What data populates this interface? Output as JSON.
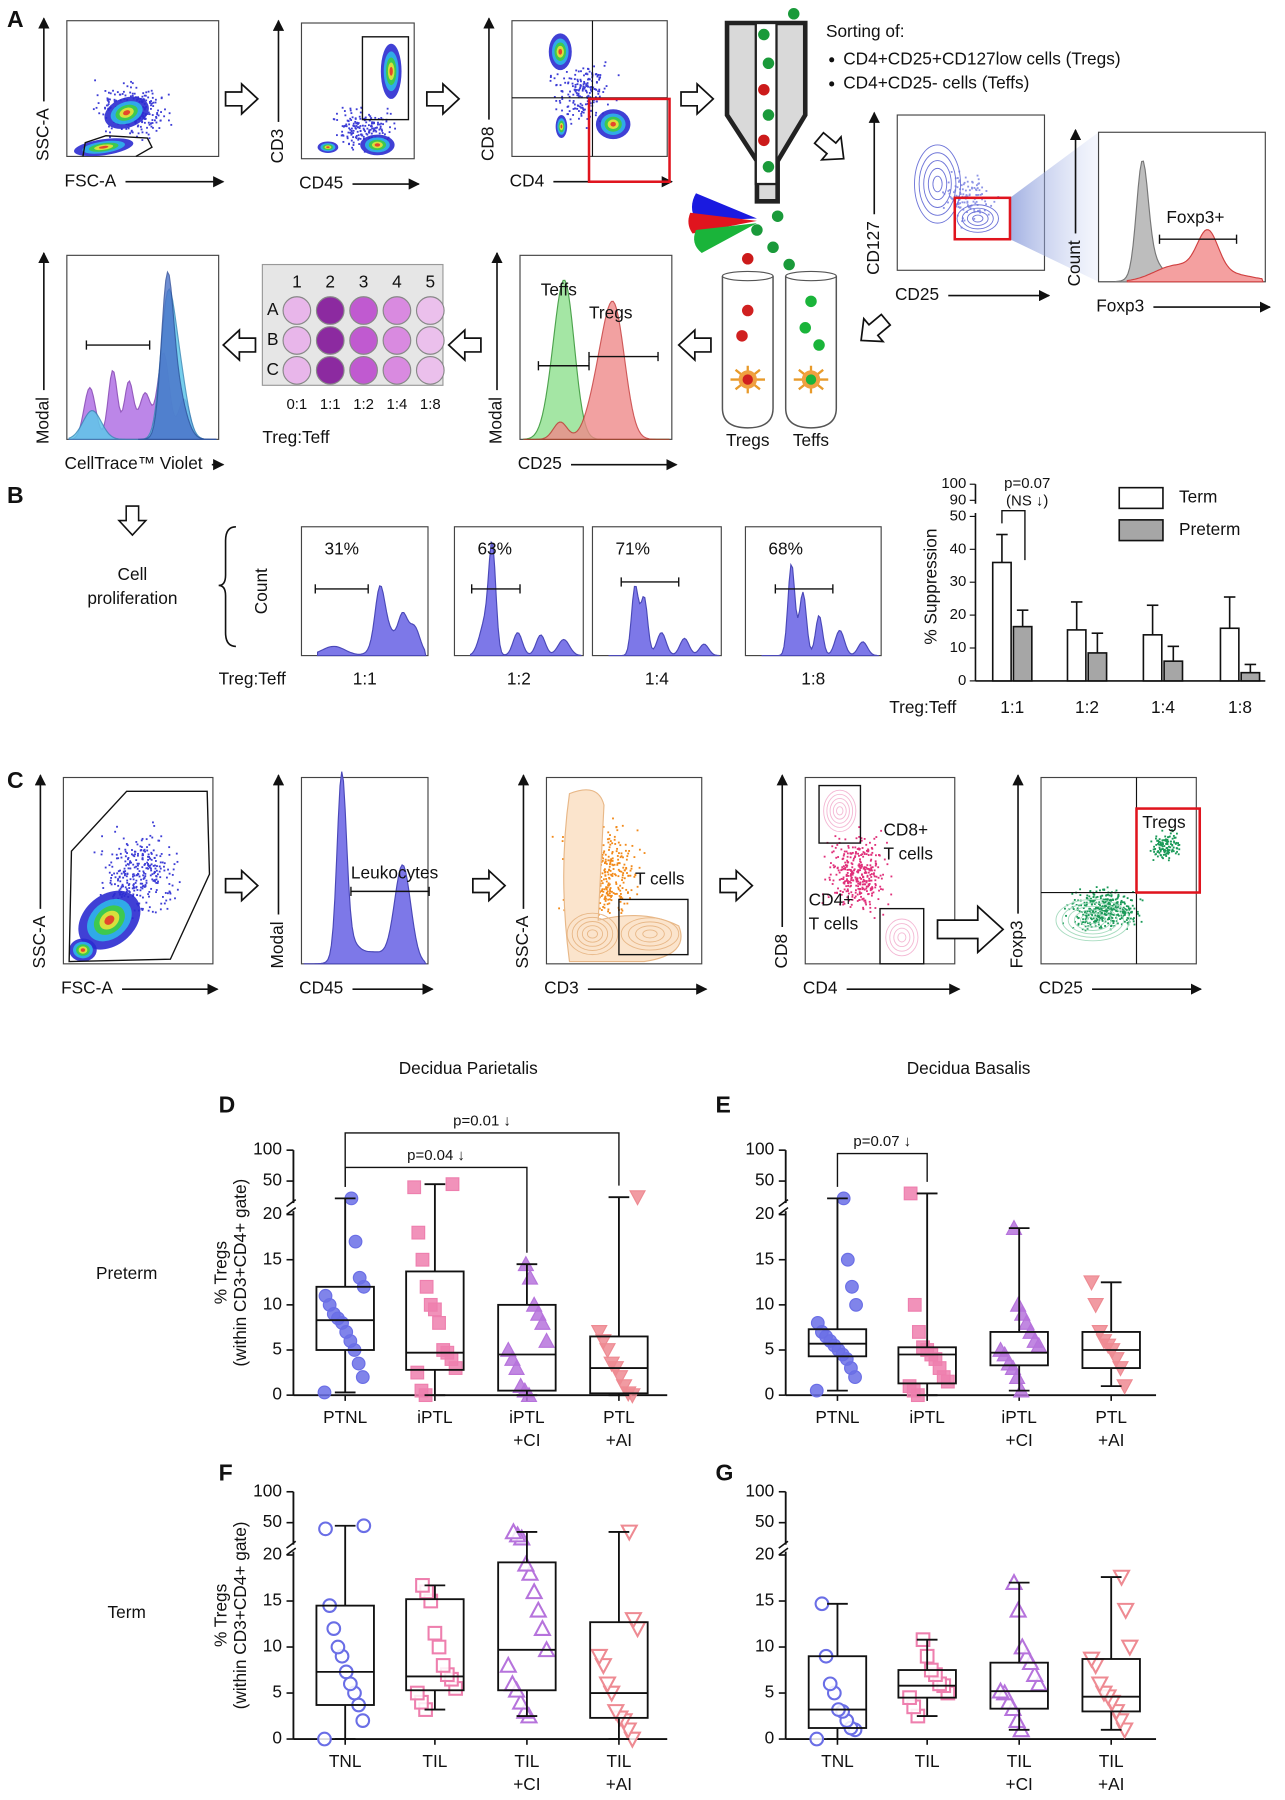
{
  "panels": {
    "a": "A",
    "b": "B",
    "c": "C",
    "d": "D",
    "e": "E",
    "f": "F",
    "g": "G"
  },
  "panel_a": {
    "gating": [
      {
        "x_label": "FSC-A",
        "y_label": "SSC-A"
      },
      {
        "x_label": "CD45",
        "y_label": "CD3"
      },
      {
        "x_label": "CD4",
        "y_label": "CD8"
      }
    ],
    "sorting_title": "Sorting of:",
    "sorting_items": [
      "CD4+CD25+CD127low cells (Tregs)",
      "CD4+CD25- cells (Teffs)"
    ],
    "purity": [
      {
        "x_label": "CD25",
        "y_label": "CD127"
      },
      {
        "x_label": "Foxp3",
        "y_label": "Count",
        "gate": "Foxp3+"
      }
    ],
    "tubes": [
      "Tregs",
      "Teffs"
    ],
    "cd25_histogram": {
      "x_label": "CD25",
      "y_label": "Modal",
      "populations": [
        "Teffs",
        "Tregs"
      ]
    },
    "plate": {
      "columns": [
        "1",
        "2",
        "3",
        "4",
        "5"
      ],
      "rows": [
        "A",
        "B",
        "C"
      ],
      "ratios": [
        "0:1",
        "1:1",
        "1:2",
        "1:4",
        "1:8"
      ],
      "label": "Treg:Teff"
    },
    "ctv_histogram": {
      "x_label": "CellTrace™ Violet",
      "y_label": "Modal"
    }
  },
  "panel_b": {
    "label": "Cell proliferation",
    "y_label": "Count",
    "ratio_label": "Treg:Teff",
    "histograms": [
      {
        "ratio": "1:1",
        "percent": "31%"
      },
      {
        "ratio": "1:2",
        "percent": "63%"
      },
      {
        "ratio": "1:4",
        "percent": "71%"
      },
      {
        "ratio": "1:8",
        "percent": "68%"
      }
    ]
  },
  "panel_c": {
    "plots": [
      {
        "x_label": "FSC-A",
        "y_label": "SSC-A"
      },
      {
        "x_label": "CD45",
        "y_label": "Modal",
        "gate": "Leukocytes"
      },
      {
        "x_label": "CD3",
        "y_label": "SSC-A",
        "gate": "T cells"
      },
      {
        "x_label": "CD4",
        "y_label": "CD8",
        "gates": [
          "CD8+ T cells",
          "CD4+ T cells"
        ]
      },
      {
        "x_label": "CD25",
        "y_label": "Foxp3",
        "gate": "Tregs"
      }
    ]
  },
  "column_titles": [
    "Decidua Parietalis",
    "Decidua Basalis"
  ],
  "row_labels": [
    "Preterm",
    "Term"
  ],
  "chart_data": [
    {
      "type": "bar",
      "y_label": "% Suppression",
      "x_label": "Treg:Teff",
      "categories": [
        "1:1",
        "1:2",
        "1:4",
        "1:8"
      ],
      "series": [
        {
          "name": "Term",
          "color": "#ffffff",
          "values": [
            36,
            15.5,
            14,
            16
          ],
          "errors": [
            8.5,
            8.5,
            9,
            9.5
          ]
        },
        {
          "name": "Preterm",
          "color": "#a6a6a6",
          "values": [
            16.5,
            8.5,
            6,
            2.5
          ],
          "errors": [
            5,
            6,
            4.5,
            2.5
          ]
        }
      ],
      "ylim": [
        0,
        50
      ],
      "yticks": [
        0,
        10,
        20,
        30,
        40,
        50
      ],
      "ylim_upper": [
        90,
        100
      ],
      "yticks_upper": [
        90,
        100
      ],
      "annotations": [
        "p=0.07",
        "(NS ↓)"
      ]
    },
    {
      "type": "box",
      "y_label": [
        "% Tregs",
        "(within CD3+CD4+ gate)"
      ],
      "categories": [
        "PTNL",
        "iPTL",
        "iPTL +CI",
        "PTL +AI"
      ],
      "colors": [
        "#6a6ee6",
        "#ee7fae",
        "#b673dc",
        "#ee8a92"
      ],
      "markers": [
        "circle",
        "square",
        "triangle",
        "triangle-down"
      ],
      "filled": true,
      "boxes": [
        {
          "whislo": 0.3,
          "q1": 5,
          "med": 8.3,
          "q3": 12,
          "whishi": 22,
          "points": [
            0.3,
            2,
            3.5,
            5,
            6,
            7,
            8,
            8.5,
            9,
            10,
            11,
            12,
            13,
            17,
            22
          ]
        },
        {
          "whislo": 0,
          "q1": 2.8,
          "med": 4.7,
          "q3": 13.7,
          "whishi": 45,
          "points": [
            0,
            0.5,
            2.5,
            3,
            4,
            4.7,
            5,
            8,
            9.5,
            10,
            12,
            15,
            18,
            40,
            45
          ]
        },
        {
          "whislo": 0,
          "q1": 0.5,
          "med": 4.5,
          "q3": 10,
          "whishi": 14.5,
          "points": [
            0,
            0.5,
            1,
            3,
            4,
            5,
            6,
            8,
            9,
            10,
            13,
            14.5
          ]
        },
        {
          "whislo": 0,
          "q1": 0.2,
          "med": 3,
          "q3": 6.5,
          "whishi": 24,
          "points": [
            0,
            0.2,
            1,
            2,
            3,
            3.5,
            5,
            6,
            7,
            24
          ]
        }
      ],
      "ylim": [
        0,
        20
      ],
      "yticks": [
        0,
        5,
        10,
        15,
        20
      ],
      "ylim_upper": [
        20,
        100
      ],
      "yticks_upper": [
        50,
        100
      ],
      "annotations": [
        "p=0.04 ↓",
        "p=0.01 ↓"
      ]
    },
    {
      "type": "box",
      "categories": [
        "PTNL",
        "iPTL",
        "iPTL +CI",
        "PTL +AI"
      ],
      "colors": [
        "#6a6ee6",
        "#ee7fae",
        "#b673dc",
        "#ee8a92"
      ],
      "markers": [
        "circle",
        "square",
        "triangle",
        "triangle-down"
      ],
      "filled": true,
      "boxes": [
        {
          "whislo": 0.5,
          "q1": 4.3,
          "med": 5.7,
          "q3": 7.3,
          "whishi": 22,
          "points": [
            0.5,
            2,
            3,
            4,
            4.5,
            5,
            5.5,
            6,
            6.5,
            7,
            8,
            10,
            12,
            15,
            22
          ]
        },
        {
          "whislo": 0,
          "q1": 1.3,
          "med": 4.5,
          "q3": 5.3,
          "whishi": 30,
          "points": [
            0,
            0.5,
            1,
            1.5,
            2,
            3,
            4,
            4.5,
            5,
            5.3,
            7,
            10,
            30
          ]
        },
        {
          "whislo": 0.5,
          "q1": 3.3,
          "med": 4.7,
          "q3": 7,
          "whishi": 18.5,
          "points": [
            0.5,
            2,
            3,
            3.5,
            4.5,
            5,
            5.5,
            6,
            7,
            8,
            9,
            10,
            18.5
          ]
        },
        {
          "whislo": 1,
          "q1": 3,
          "med": 5,
          "q3": 7,
          "whishi": 12.5,
          "points": [
            1,
            3,
            4,
            5,
            5.5,
            6,
            7,
            10,
            12.5
          ]
        }
      ],
      "ylim": [
        0,
        20
      ],
      "yticks": [
        0,
        5,
        10,
        15,
        20
      ],
      "ylim_upper": [
        20,
        100
      ],
      "yticks_upper": [
        50,
        100
      ],
      "annotations": [
        "p=0.07 ↓"
      ]
    },
    {
      "type": "box",
      "y_label": [
        "% Tregs",
        "(within CD3+CD4+ gate)"
      ],
      "categories": [
        "TNL",
        "TIL",
        "TIL +CI",
        "TIL +AI"
      ],
      "colors": [
        "#6a6ee6",
        "#ee7fae",
        "#b673dc",
        "#ee8a92"
      ],
      "markers": [
        "circle",
        "square",
        "triangle",
        "triangle-down"
      ],
      "filled": false,
      "boxes": [
        {
          "whislo": 0,
          "q1": 3.7,
          "med": 7.3,
          "q3": 14.5,
          "whishi": 45,
          "points": [
            0,
            2,
            3.7,
            5,
            6,
            7.3,
            9,
            10,
            12,
            14.5,
            40,
            45
          ]
        },
        {
          "whislo": 3.2,
          "q1": 5.3,
          "med": 6.8,
          "q3": 15.2,
          "whishi": 16.7,
          "points": [
            3.2,
            4,
            5,
            5.5,
            6.5,
            7,
            8,
            10,
            11.5,
            15,
            16,
            16.7
          ]
        },
        {
          "whislo": 2.5,
          "q1": 5.3,
          "med": 9.7,
          "q3": 19.2,
          "whishi": 35,
          "points": [
            2.5,
            3,
            4,
            5.3,
            6,
            8,
            9.7,
            12,
            14,
            16,
            18,
            19,
            25,
            30,
            35
          ]
        },
        {
          "whislo": 0,
          "q1": 2.3,
          "med": 5,
          "q3": 12.7,
          "whishi": 35,
          "points": [
            0,
            1,
            2,
            2.3,
            3,
            5,
            6,
            8,
            9,
            12,
            13,
            35
          ]
        }
      ],
      "ylim": [
        0,
        20
      ],
      "yticks": [
        0,
        5,
        10,
        15,
        20
      ],
      "ylim_upper": [
        20,
        100
      ],
      "yticks_upper": [
        50,
        100
      ]
    },
    {
      "type": "box",
      "categories": [
        "TNL",
        "TIL",
        "TIL +CI",
        "TIL +AI"
      ],
      "colors": [
        "#6a6ee6",
        "#ee7fae",
        "#b673dc",
        "#ee8a92"
      ],
      "markers": [
        "circle",
        "square",
        "triangle",
        "triangle-down"
      ],
      "filled": false,
      "boxes": [
        {
          "whislo": 0,
          "q1": 1.2,
          "med": 3.2,
          "q3": 9,
          "whishi": 14.7,
          "points": [
            0,
            1,
            1.2,
            2,
            3,
            3.2,
            5,
            6,
            9,
            14.7
          ]
        },
        {
          "whislo": 2.5,
          "q1": 4.5,
          "med": 5.8,
          "q3": 7.5,
          "whishi": 10.8,
          "points": [
            2.5,
            3.5,
            4.5,
            5,
            5.8,
            6,
            7,
            7.5,
            9,
            10.8
          ]
        },
        {
          "whislo": 1,
          "q1": 3.3,
          "med": 5.2,
          "q3": 8.3,
          "whishi": 17,
          "points": [
            1,
            2,
            3.3,
            4,
            5,
            5.2,
            6,
            7,
            8.3,
            9,
            10,
            14,
            17
          ]
        },
        {
          "whislo": 1,
          "q1": 3,
          "med": 4.6,
          "q3": 8.7,
          "whishi": 17.6,
          "points": [
            1,
            2,
            3,
            4,
            4.6,
            5,
            6,
            8,
            8.7,
            10,
            14,
            17.6
          ]
        }
      ],
      "ylim": [
        0,
        20
      ],
      "yticks": [
        0,
        5,
        10,
        15,
        20
      ],
      "ylim_upper": [
        20,
        100
      ],
      "yticks_upper": [
        50,
        100
      ]
    }
  ]
}
